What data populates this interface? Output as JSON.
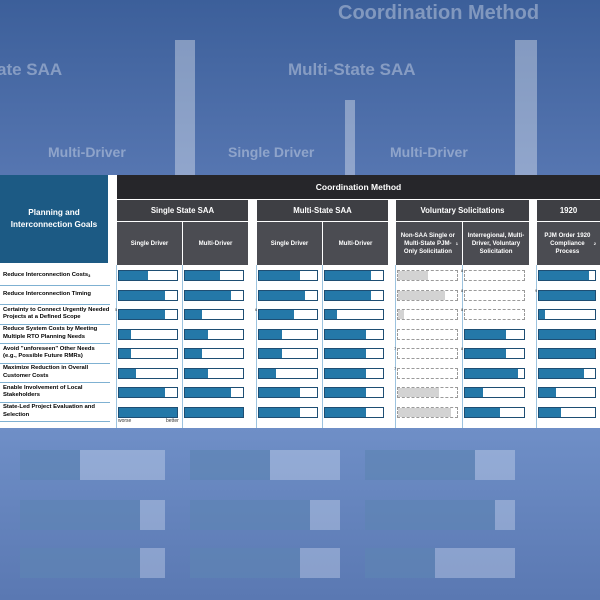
{
  "background": {
    "ghost_title": "Coordination Method",
    "ghost_groups": [
      "State SAA",
      "Multi-State SAA"
    ],
    "ghost_subs": [
      "Multi-Driver",
      "Single Driver",
      "Multi-Driver"
    ]
  },
  "colors": {
    "header_dark": "#26262a",
    "goal_header": "#1c5a84",
    "bar_fill": "#2478a8",
    "bar_grey": "#d3d3d3"
  },
  "header": {
    "goal_title": "Planning and Interconnection Goals",
    "coordination_title": "Coordination Method",
    "groups": [
      "Single State SAA",
      "Multi-State SAA",
      "Voluntary Solicitations",
      "1920"
    ],
    "subs": [
      "Single Driver",
      "Multi-Driver",
      "Single Driver",
      "Multi-Driver",
      "Non-SAA Single or Multi-State PJM-Only Solicitation",
      "Interregional, Multi-Driver, Voluntary Solicitation",
      "PJM Order 1920 Compliance Process"
    ],
    "sub_footnotes": [
      "",
      "",
      "",
      "",
      "1",
      "",
      "2"
    ]
  },
  "axis": {
    "worse": "worse",
    "better": "better"
  },
  "chart_data": {
    "type": "bar",
    "title": "Coordination Method",
    "categories": [
      "Reduce Interconnection Costs",
      "Reduce Interconnection Timing",
      "Certainty to Connect Urgently Needed Projects at a Defined Scope",
      "Reduce System Costs by Meeting Multiple RTO Planning Needs",
      "Avoid \"unforeseen\" Other Needs (e.g., Possible Future RMRs)",
      "Maximize Reduction in Overall Customer Costs",
      "Enable Involvement of Local Stakeholders",
      "State-Led Project Evaluation and Selection"
    ],
    "category_footnotes": [
      "3",
      "",
      "",
      "",
      "",
      "",
      "",
      ""
    ],
    "scale": [
      "worse",
      "better"
    ],
    "xlim": [
      0,
      1
    ],
    "series": [
      {
        "name": "Single State SAA - Single Driver",
        "values": [
          0.5,
          0.8,
          0.8,
          0.2,
          0.2,
          0.3,
          0.8,
          1.0
        ],
        "style": [
          "fill",
          "fill",
          "fill",
          "fill",
          "fill",
          "fill",
          "fill",
          "fill"
        ],
        "notes": [
          "",
          "",
          "5",
          "",
          "",
          "",
          "",
          ""
        ]
      },
      {
        "name": "Single State SAA - Multi-Driver",
        "values": [
          0.6,
          0.8,
          0.3,
          0.4,
          0.3,
          0.4,
          0.8,
          1.0
        ],
        "style": [
          "fill",
          "fill",
          "fill",
          "fill",
          "fill",
          "fill",
          "fill",
          "fill"
        ],
        "notes": [
          "",
          "",
          "",
          "",
          "",
          "",
          "",
          ""
        ]
      },
      {
        "name": "Multi-State SAA - Single Driver",
        "values": [
          0.7,
          0.8,
          0.6,
          0.4,
          0.4,
          0.3,
          0.7,
          0.7
        ],
        "style": [
          "fill",
          "fill",
          "fill",
          "fill",
          "fill",
          "fill",
          "fill",
          "fill"
        ],
        "notes": [
          "",
          "",
          "6",
          "",
          "",
          "",
          "",
          ""
        ]
      },
      {
        "name": "Multi-State SAA - Multi-Driver",
        "values": [
          0.8,
          0.8,
          0.2,
          0.7,
          0.7,
          0.7,
          0.7,
          0.7
        ],
        "style": [
          "fill",
          "fill",
          "fill",
          "fill",
          "fill",
          "fill",
          "fill",
          "fill"
        ],
        "notes": [
          "",
          "",
          "",
          "",
          "",
          "",
          "",
          ""
        ]
      },
      {
        "name": "Voluntary Solicitations - Non-SAA Single or Multi-State PJM-Only Solicitation",
        "values": [
          0.5,
          0.8,
          0.1,
          0.0,
          0.0,
          0.0,
          0.7,
          0.9
        ],
        "style": [
          "grey",
          "grey",
          "grey",
          "none",
          "none",
          "none",
          "grey",
          "grey"
        ],
        "notes": [
          "",
          "",
          "",
          "",
          "7",
          "7",
          "",
          ""
        ]
      },
      {
        "name": "Voluntary Solicitations - Interregional, Multi-Driver, Voluntary Solicitation",
        "values": [
          0.0,
          0.0,
          0.0,
          0.7,
          0.7,
          0.9,
          0.3,
          0.6
        ],
        "style": [
          "none",
          "none",
          "none",
          "fill",
          "fill",
          "fill",
          "fill",
          "fill"
        ],
        "notes": [
          "8",
          "8",
          "8",
          "",
          "8",
          "",
          "",
          ""
        ]
      },
      {
        "name": "1920 - PJM Order 1920 Compliance Process",
        "values": [
          0.9,
          1.0,
          0.1,
          1.0,
          1.0,
          0.8,
          0.3,
          0.4
        ],
        "style": [
          "fill",
          "fill",
          "fill",
          "fill",
          "fill",
          "fill",
          "fill",
          "fill"
        ],
        "notes": [
          "",
          "9",
          "",
          "",
          "",
          "",
          "",
          ""
        ]
      }
    ]
  }
}
